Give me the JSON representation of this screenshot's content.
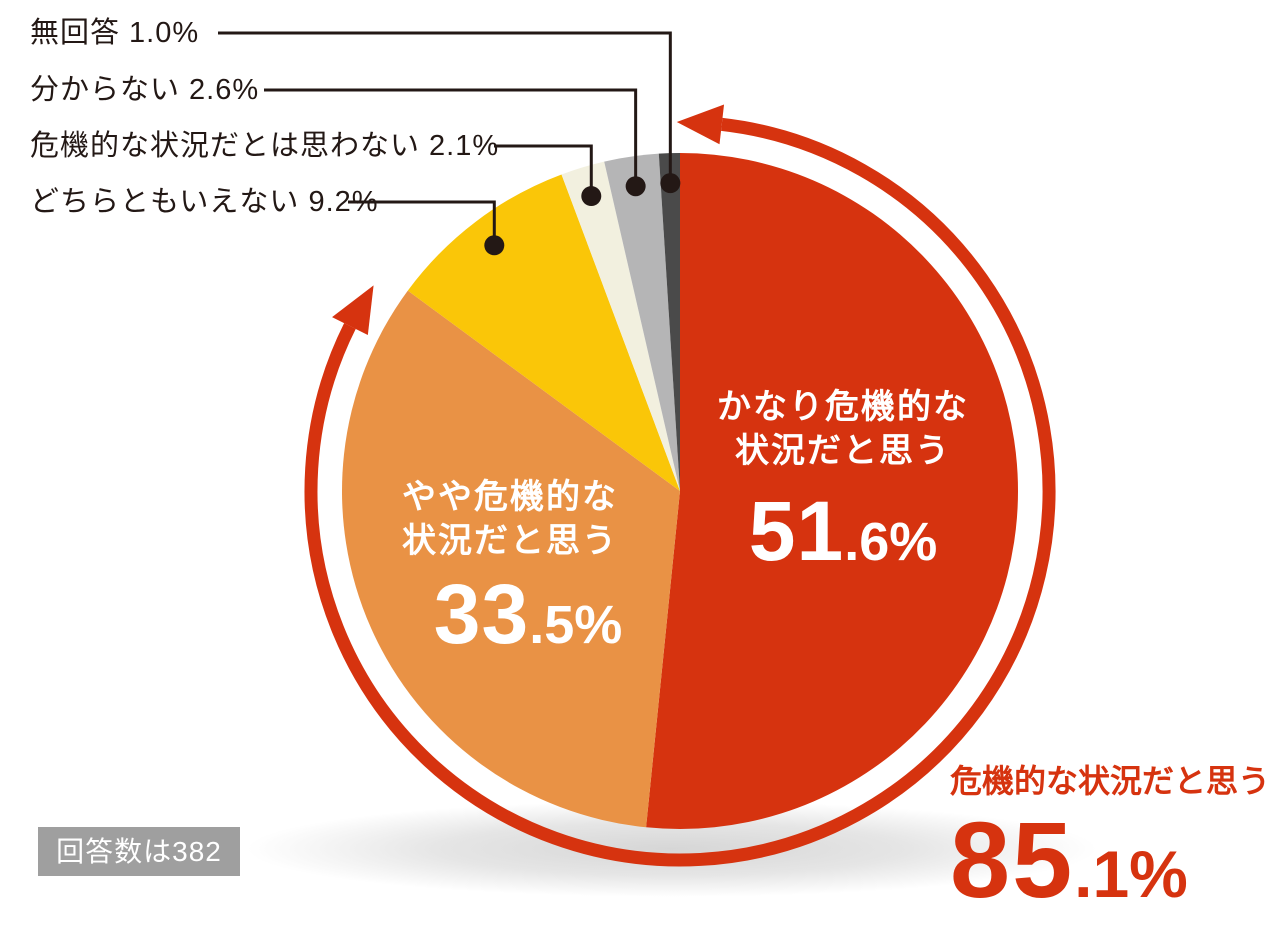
{
  "chart_data": {
    "type": "pie",
    "unit": "%",
    "direction": "clockwise",
    "start_angle_deg": 0,
    "slices": [
      {
        "label": "かなり危機的な状況だと思う",
        "value": 51.6,
        "color": "#d6330f",
        "label_lines": [
          "かなり危機的な",
          "状況だと思う"
        ],
        "pct_whole": "51",
        "pct_frac": ".6%"
      },
      {
        "label": "やや危機的な状況だと思う",
        "value": 33.5,
        "color": "#e99245",
        "label_lines": [
          "やや危機的な",
          "状況だと思う"
        ],
        "pct_whole": "33",
        "pct_frac": ".5%"
      },
      {
        "label": "どちらともいえない",
        "value": 9.2,
        "color": "#fac608"
      },
      {
        "label": "危機的な状況だとは思わない",
        "value": 2.1,
        "color": "#f2f0df"
      },
      {
        "label": "分からない",
        "value": 2.6,
        "color": "#b5b5b6"
      },
      {
        "label": "無回答",
        "value": 1.0,
        "color": "#4a4a4a"
      }
    ],
    "callouts": [
      {
        "display": "無回答 1.0%",
        "slice_index": 5
      },
      {
        "display": "分からない 2.6%",
        "slice_index": 4
      },
      {
        "display": "危機的な状況だとは思わない 2.1%",
        "slice_index": 3
      },
      {
        "display": "どちらともいえない 9.2%",
        "slice_index": 2
      }
    ],
    "annotation": {
      "label": "危機的な状況だと思う",
      "value": 85.1,
      "pct_whole": "85",
      "pct_frac": ".1%",
      "color": "#d6330f"
    },
    "footnote": "回答数は382",
    "legend_position": "callout-left",
    "grid": false
  },
  "colors": {
    "background": "#ffffff",
    "accent_red": "#d6330f",
    "leader_line": "#231815",
    "badge_bg": "#9f9f9f",
    "shadow": "#cccccc"
  }
}
